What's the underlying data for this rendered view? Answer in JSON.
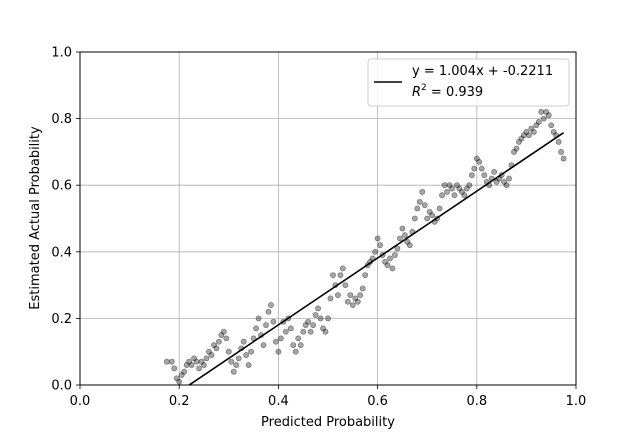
{
  "chart_data": {
    "type": "scatter",
    "title": "",
    "xlabel": "Predicted Probability",
    "ylabel": "Estimated Actual Probability",
    "xlim": [
      0.0,
      1.0
    ],
    "ylim": [
      0.0,
      1.0
    ],
    "xticks": [
      "0.0",
      "0.2",
      "0.4",
      "0.6",
      "0.8",
      "1.0"
    ],
    "yticks": [
      "0.0",
      "0.2",
      "0.4",
      "0.6",
      "0.8",
      "1.0"
    ],
    "grid": true,
    "legend_position": "top-right",
    "fit_line": {
      "slope": 1.004,
      "intercept": -0.2211,
      "x_range": [
        0.22,
        0.975
      ],
      "color": "#000000",
      "label": "y = 1.004x + -0.2211",
      "r2_label_prefix": "R",
      "r2_label_superscript": "2",
      "r2_label_suffix": " = 0.939"
    },
    "series": [
      {
        "marker_color": "#000000",
        "points": [
          [
            0.175,
            0.07
          ],
          [
            0.185,
            0.07
          ],
          [
            0.19,
            0.05
          ],
          [
            0.195,
            0.02
          ],
          [
            0.2,
            0.01
          ],
          [
            0.205,
            0.03
          ],
          [
            0.21,
            0.04
          ],
          [
            0.215,
            0.06
          ],
          [
            0.22,
            0.07
          ],
          [
            0.225,
            0.06
          ],
          [
            0.23,
            0.08
          ],
          [
            0.235,
            0.07
          ],
          [
            0.24,
            0.05
          ],
          [
            0.245,
            0.07
          ],
          [
            0.25,
            0.06
          ],
          [
            0.255,
            0.08
          ],
          [
            0.26,
            0.1
          ],
          [
            0.265,
            0.09
          ],
          [
            0.27,
            0.12
          ],
          [
            0.275,
            0.11
          ],
          [
            0.28,
            0.13
          ],
          [
            0.285,
            0.15
          ],
          [
            0.29,
            0.16
          ],
          [
            0.295,
            0.14
          ],
          [
            0.3,
            0.1
          ],
          [
            0.305,
            0.07
          ],
          [
            0.31,
            0.04
          ],
          [
            0.315,
            0.06
          ],
          [
            0.32,
            0.08
          ],
          [
            0.325,
            0.11
          ],
          [
            0.33,
            0.13
          ],
          [
            0.335,
            0.09
          ],
          [
            0.34,
            0.06
          ],
          [
            0.345,
            0.1
          ],
          [
            0.35,
            0.14
          ],
          [
            0.355,
            0.17
          ],
          [
            0.36,
            0.2
          ],
          [
            0.365,
            0.15
          ],
          [
            0.37,
            0.12
          ],
          [
            0.375,
            0.18
          ],
          [
            0.38,
            0.22
          ],
          [
            0.385,
            0.24
          ],
          [
            0.39,
            0.19
          ],
          [
            0.395,
            0.13
          ],
          [
            0.4,
            0.1
          ],
          [
            0.405,
            0.14
          ],
          [
            0.41,
            0.19
          ],
          [
            0.415,
            0.16
          ],
          [
            0.42,
            0.2
          ],
          [
            0.425,
            0.17
          ],
          [
            0.43,
            0.12
          ],
          [
            0.435,
            0.1
          ],
          [
            0.44,
            0.14
          ],
          [
            0.445,
            0.12
          ],
          [
            0.45,
            0.16
          ],
          [
            0.455,
            0.18
          ],
          [
            0.46,
            0.19
          ],
          [
            0.465,
            0.16
          ],
          [
            0.47,
            0.18
          ],
          [
            0.475,
            0.21
          ],
          [
            0.48,
            0.23
          ],
          [
            0.485,
            0.2
          ],
          [
            0.49,
            0.17
          ],
          [
            0.495,
            0.16
          ],
          [
            0.5,
            0.2
          ],
          [
            0.505,
            0.26
          ],
          [
            0.51,
            0.33
          ],
          [
            0.515,
            0.3
          ],
          [
            0.52,
            0.27
          ],
          [
            0.525,
            0.33
          ],
          [
            0.53,
            0.35
          ],
          [
            0.535,
            0.3
          ],
          [
            0.54,
            0.25
          ],
          [
            0.545,
            0.27
          ],
          [
            0.55,
            0.24
          ],
          [
            0.555,
            0.26
          ],
          [
            0.56,
            0.25
          ],
          [
            0.565,
            0.27
          ],
          [
            0.57,
            0.29
          ],
          [
            0.575,
            0.33
          ],
          [
            0.58,
            0.36
          ],
          [
            0.585,
            0.37
          ],
          [
            0.59,
            0.38
          ],
          [
            0.595,
            0.4
          ],
          [
            0.6,
            0.44
          ],
          [
            0.605,
            0.42
          ],
          [
            0.61,
            0.39
          ],
          [
            0.615,
            0.37
          ],
          [
            0.62,
            0.36
          ],
          [
            0.625,
            0.38
          ],
          [
            0.63,
            0.35
          ],
          [
            0.635,
            0.39
          ],
          [
            0.64,
            0.41
          ],
          [
            0.645,
            0.44
          ],
          [
            0.65,
            0.47
          ],
          [
            0.655,
            0.45
          ],
          [
            0.66,
            0.43
          ],
          [
            0.665,
            0.42
          ],
          [
            0.67,
            0.46
          ],
          [
            0.675,
            0.5
          ],
          [
            0.68,
            0.53
          ],
          [
            0.685,
            0.55
          ],
          [
            0.69,
            0.58
          ],
          [
            0.695,
            0.54
          ],
          [
            0.7,
            0.5
          ],
          [
            0.705,
            0.52
          ],
          [
            0.71,
            0.51
          ],
          [
            0.715,
            0.49
          ],
          [
            0.72,
            0.5
          ],
          [
            0.725,
            0.53
          ],
          [
            0.73,
            0.57
          ],
          [
            0.735,
            0.6
          ],
          [
            0.74,
            0.58
          ],
          [
            0.745,
            0.6
          ],
          [
            0.75,
            0.59
          ],
          [
            0.755,
            0.57
          ],
          [
            0.76,
            0.6
          ],
          [
            0.765,
            0.59
          ],
          [
            0.77,
            0.58
          ],
          [
            0.775,
            0.57
          ],
          [
            0.78,
            0.59
          ],
          [
            0.785,
            0.6
          ],
          [
            0.79,
            0.63
          ],
          [
            0.795,
            0.65
          ],
          [
            0.8,
            0.68
          ],
          [
            0.805,
            0.67
          ],
          [
            0.81,
            0.65
          ],
          [
            0.815,
            0.63
          ],
          [
            0.82,
            0.61
          ],
          [
            0.825,
            0.6
          ],
          [
            0.83,
            0.62
          ],
          [
            0.835,
            0.64
          ],
          [
            0.84,
            0.61
          ],
          [
            0.845,
            0.62
          ],
          [
            0.85,
            0.63
          ],
          [
            0.855,
            0.61
          ],
          [
            0.86,
            0.6
          ],
          [
            0.865,
            0.62
          ],
          [
            0.87,
            0.66
          ],
          [
            0.875,
            0.7
          ],
          [
            0.88,
            0.71
          ],
          [
            0.885,
            0.73
          ],
          [
            0.89,
            0.74
          ],
          [
            0.895,
            0.75
          ],
          [
            0.9,
            0.76
          ],
          [
            0.905,
            0.75
          ],
          [
            0.91,
            0.77
          ],
          [
            0.915,
            0.76
          ],
          [
            0.92,
            0.78
          ],
          [
            0.925,
            0.79
          ],
          [
            0.93,
            0.82
          ],
          [
            0.935,
            0.8
          ],
          [
            0.94,
            0.82
          ],
          [
            0.945,
            0.81
          ],
          [
            0.95,
            0.78
          ],
          [
            0.955,
            0.76
          ],
          [
            0.96,
            0.75
          ],
          [
            0.965,
            0.73
          ],
          [
            0.97,
            0.7
          ],
          [
            0.975,
            0.68
          ]
        ]
      }
    ]
  }
}
